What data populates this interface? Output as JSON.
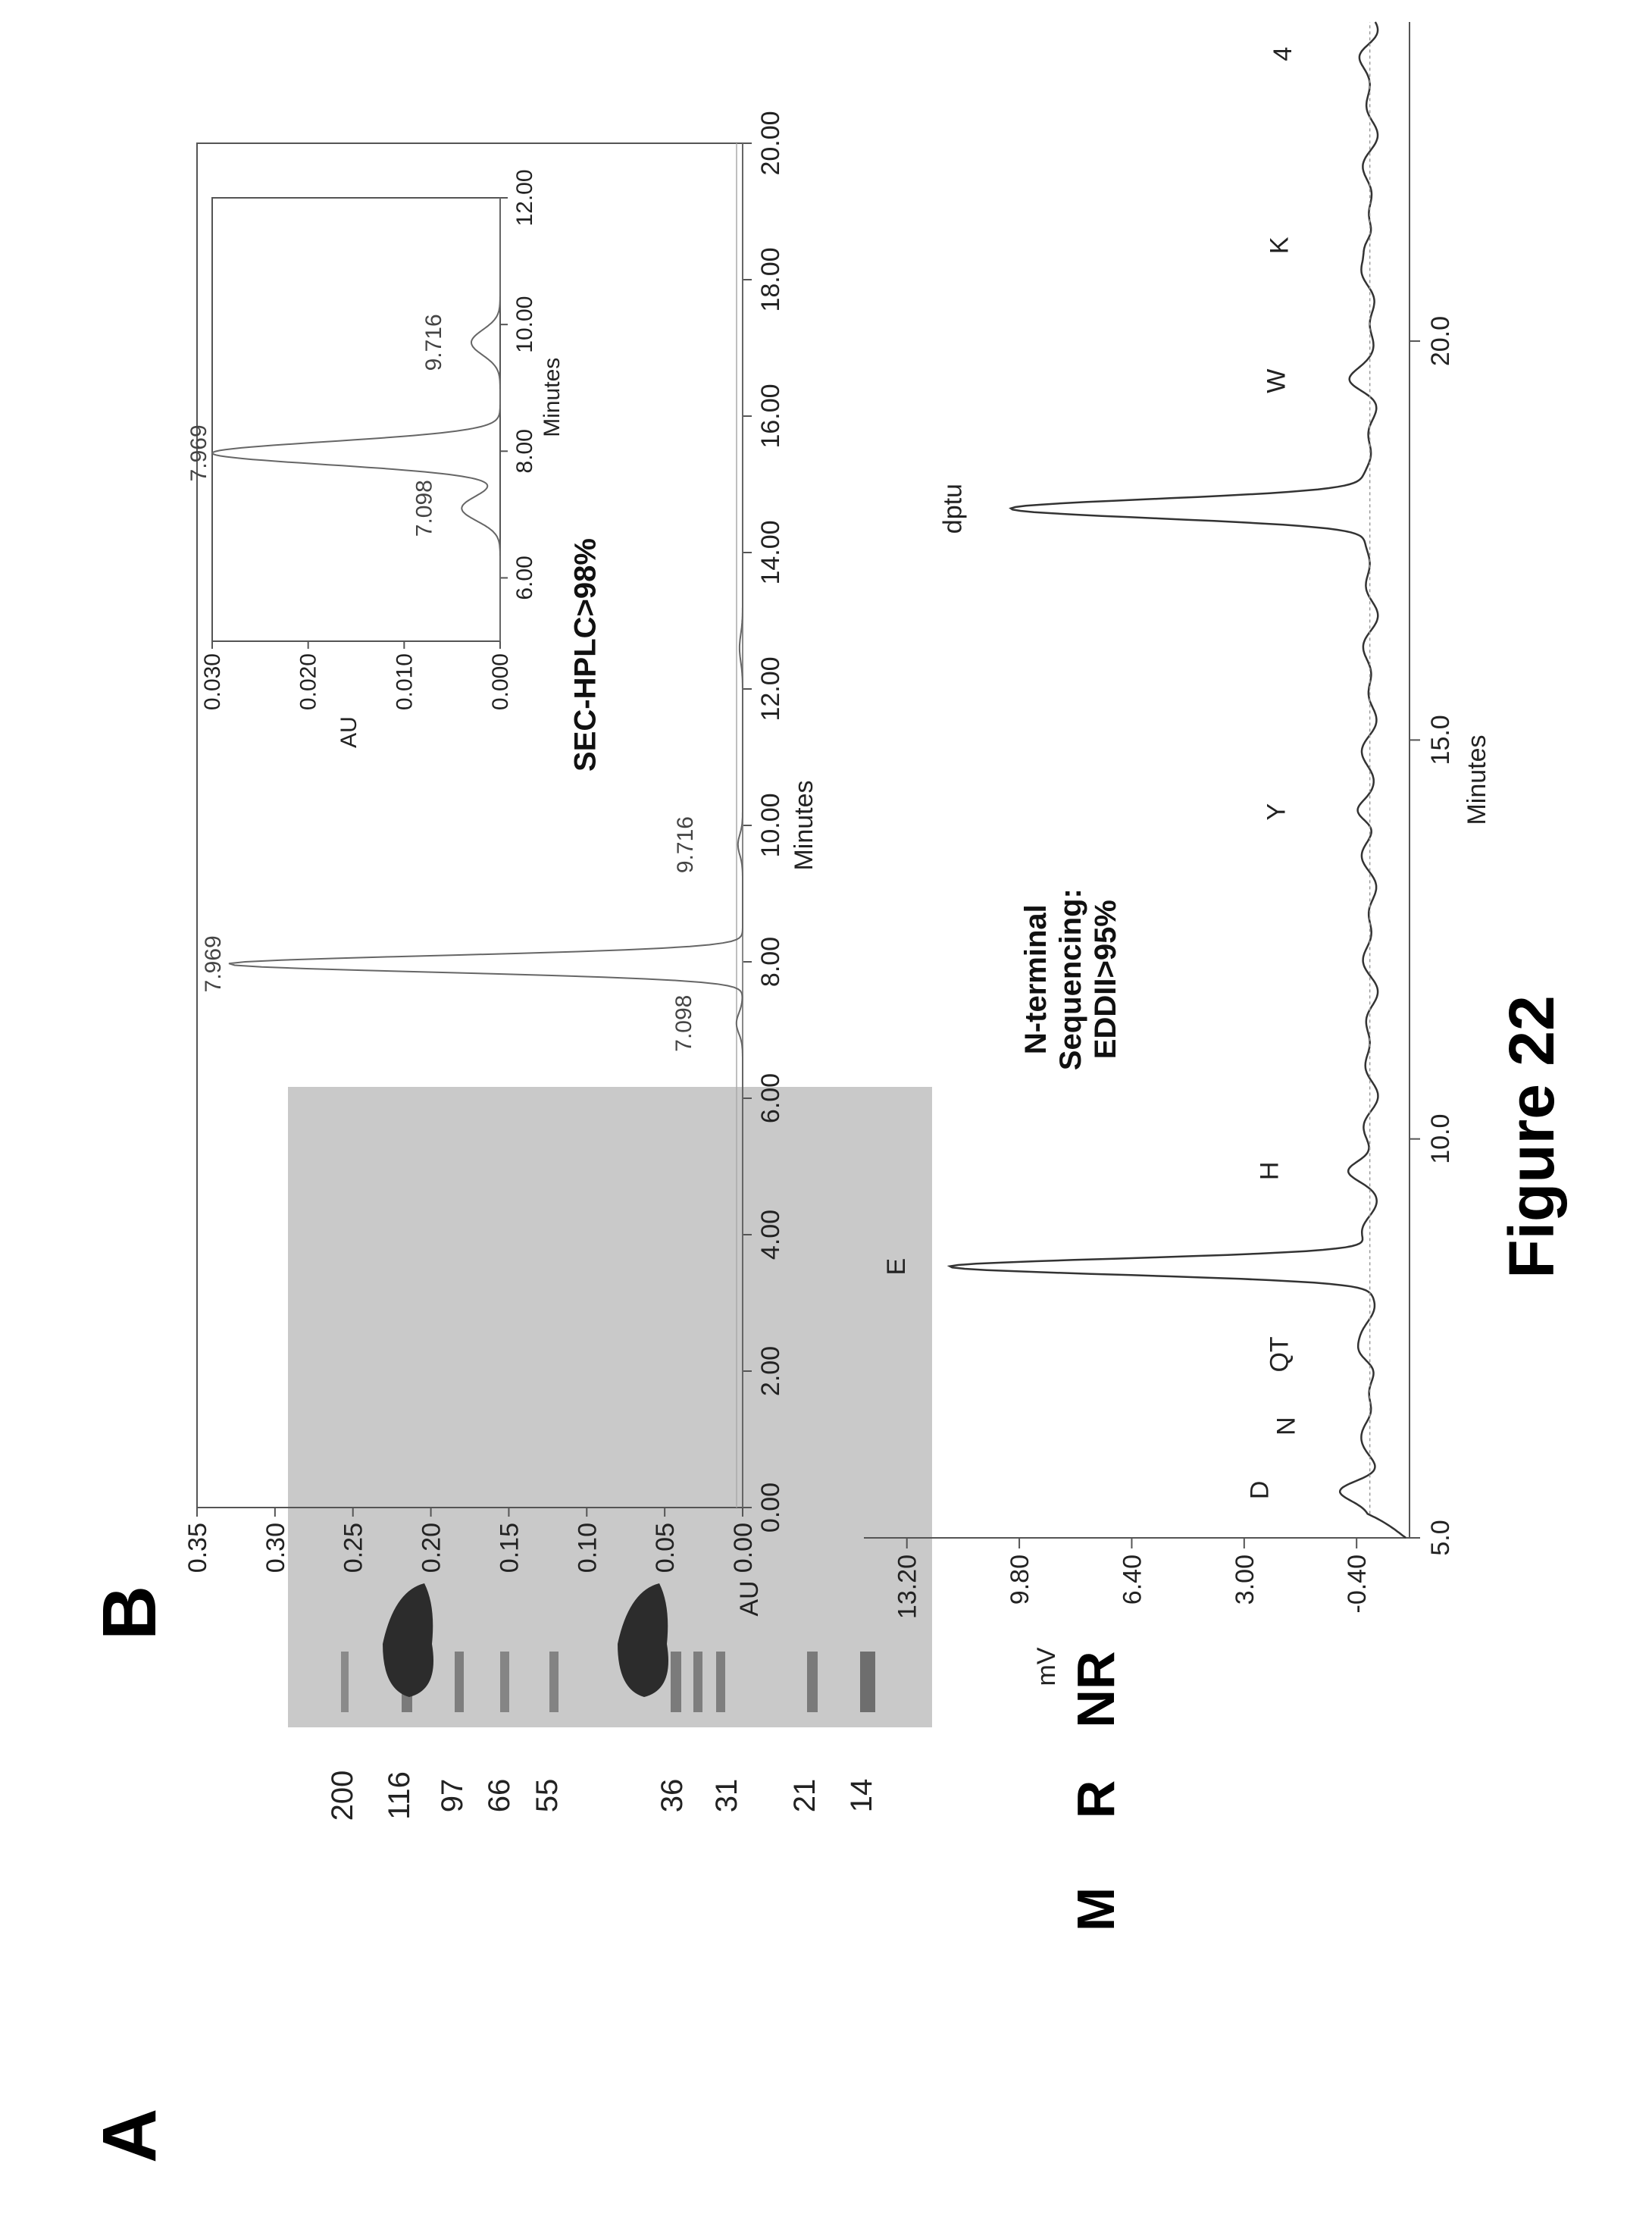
{
  "figure_title": "Figure 22",
  "panel_a": {
    "letter": "A",
    "lanes": [
      "M",
      "R",
      "NR"
    ],
    "mw_markers": [
      "200",
      "116",
      "97",
      "66",
      "55",
      "36",
      "31",
      "21",
      "14"
    ]
  },
  "panel_b": {
    "letter": "B"
  },
  "chart_data": [
    {
      "type": "line",
      "title": "SEC-HPLC>98%",
      "xlabel": "Minutes",
      "ylabel": "AU",
      "xlim": [
        0,
        20
      ],
      "ylim": [
        0,
        0.35
      ],
      "x_ticks": [
        "0.00",
        "2.00",
        "4.00",
        "6.00",
        "8.00",
        "10.00",
        "12.00",
        "14.00",
        "16.00",
        "18.00",
        "20.00"
      ],
      "y_ticks": [
        "0.00",
        "0.05",
        "0.10",
        "0.15",
        "0.20",
        "0.25",
        "0.30",
        "0.35"
      ],
      "peaks": [
        {
          "label": "7.098",
          "x": 7.098,
          "y": 0.004
        },
        {
          "label": "7.969",
          "x": 7.969,
          "y": 0.33
        },
        {
          "label": "9.716",
          "x": 9.716,
          "y": 0.003
        }
      ],
      "inset": {
        "xlabel": "Minutes",
        "ylabel": "AU",
        "xlim": [
          5,
          12
        ],
        "ylim": [
          0,
          0.03
        ],
        "x_ticks": [
          "6.00",
          "8.00",
          "10.00",
          "12.00"
        ],
        "y_ticks": [
          "0.000",
          "0.010",
          "0.020",
          "0.030"
        ],
        "peaks": [
          {
            "label": "7.098",
            "x": 7.098,
            "y": 0.004
          },
          {
            "label": "7.969",
            "x": 7.969,
            "y": 0.03
          },
          {
            "label": "9.716",
            "x": 9.716,
            "y": 0.003
          }
        ]
      }
    },
    {
      "type": "line",
      "title": "N-terminal Sequencing: EDDII>95%",
      "title_lines": [
        "N-terminal",
        "Sequencing:",
        "EDDII>95%"
      ],
      "xlabel": "Minutes",
      "ylabel": "mV",
      "xlim": [
        5,
        24
      ],
      "ylim": [
        -2.0,
        14.5
      ],
      "x_ticks": [
        "5.0",
        "10.0",
        "15.0",
        "20.0"
      ],
      "y_ticks": [
        "-0.40",
        "3.00",
        "6.40",
        "9.80",
        "13.20"
      ],
      "peaks": [
        {
          "label": "D",
          "x": 5.6,
          "y": 0.9
        },
        {
          "label": "N",
          "x": 6.4,
          "y": 0.1
        },
        {
          "label": "QT",
          "x": 7.3,
          "y": 0.3
        },
        {
          "label": "E",
          "x": 8.4,
          "y": 12.8
        },
        {
          "label": "H",
          "x": 9.6,
          "y": 0.6
        },
        {
          "label": "Y",
          "x": 14.1,
          "y": 0.4
        },
        {
          "label": "dptu",
          "x": 17.9,
          "y": 11.1
        },
        {
          "label": "W",
          "x": 19.5,
          "y": 0.4
        },
        {
          "label": "K",
          "x": 21.2,
          "y": 0.3
        },
        {
          "label": "4",
          "x": 23.6,
          "y": 0.2
        }
      ]
    }
  ]
}
